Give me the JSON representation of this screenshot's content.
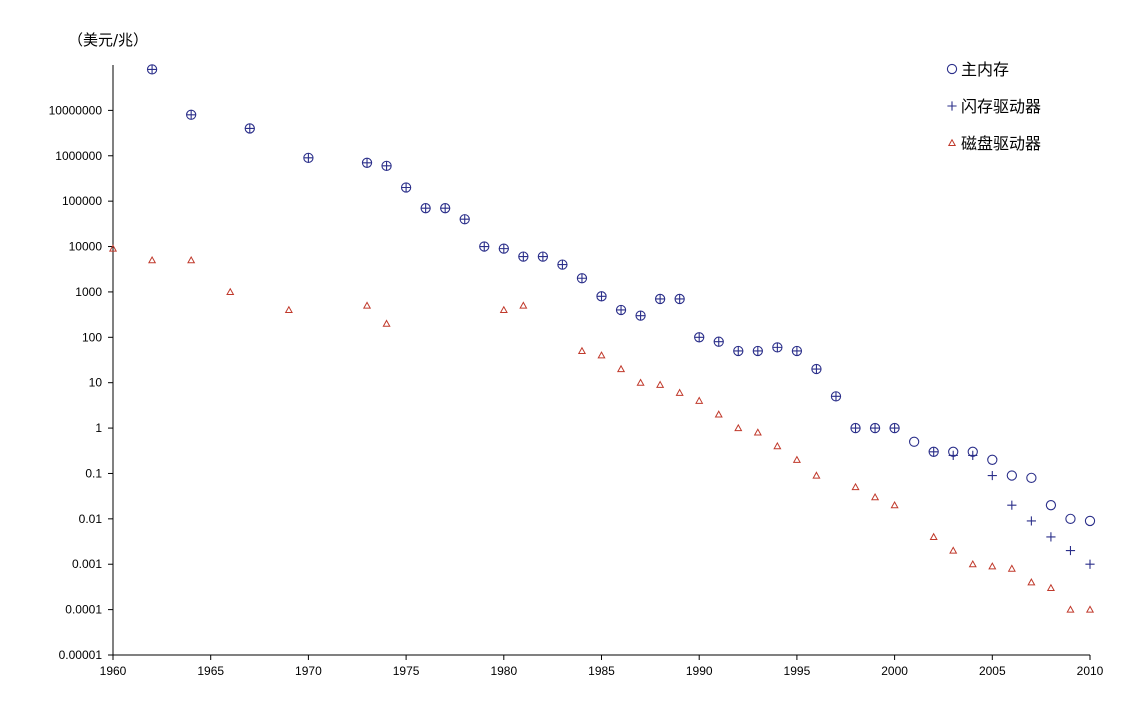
{
  "chart_data": {
    "type": "scatter",
    "y_scale": "log",
    "ylabel": "（美元/兆）",
    "xlabel": "",
    "title": "",
    "xlim": [
      1960,
      2010
    ],
    "ylim": [
      1e-05,
      100000000
    ],
    "x_ticks": [
      "1960",
      "1965",
      "1970",
      "1975",
      "1980",
      "1985",
      "1990",
      "1995",
      "2000",
      "2005",
      "2010"
    ],
    "y_ticks": [
      "0.00001",
      "0.0001",
      "0.001",
      "0.01",
      "0.1",
      "1",
      "10",
      "100",
      "1000",
      "10000",
      "100000",
      "1000000",
      "10000000"
    ],
    "grid": false,
    "legend_position": "top-right",
    "series": [
      {
        "name": "主内存",
        "marker": "circle",
        "color": "#2b2f8a",
        "points": [
          [
            1962,
            80000000
          ],
          [
            1964,
            8000000
          ],
          [
            1967,
            4000000
          ],
          [
            1970,
            900000
          ],
          [
            1973,
            700000
          ],
          [
            1974,
            600000
          ],
          [
            1975,
            200000
          ],
          [
            1976,
            70000
          ],
          [
            1977,
            70000
          ],
          [
            1978,
            40000
          ],
          [
            1979,
            10000
          ],
          [
            1980,
            9000
          ],
          [
            1981,
            6000
          ],
          [
            1982,
            6000
          ],
          [
            1983,
            4000
          ],
          [
            1984,
            2000
          ],
          [
            1985,
            800
          ],
          [
            1986,
            400
          ],
          [
            1987,
            300
          ],
          [
            1988,
            700
          ],
          [
            1989,
            700
          ],
          [
            1990,
            100
          ],
          [
            1991,
            80
          ],
          [
            1992,
            50
          ],
          [
            1993,
            50
          ],
          [
            1994,
            60
          ],
          [
            1995,
            50
          ],
          [
            1996,
            20
          ],
          [
            1997,
            5
          ],
          [
            1998,
            1
          ],
          [
            1999,
            1
          ],
          [
            2000,
            1
          ],
          [
            2001,
            0.5
          ],
          [
            2002,
            0.3
          ],
          [
            2003,
            0.3
          ],
          [
            2004,
            0.3
          ],
          [
            2005,
            0.2
          ],
          [
            2006,
            0.09
          ],
          [
            2007,
            0.08
          ],
          [
            2008,
            0.02
          ],
          [
            2009,
            0.01
          ],
          [
            2010,
            0.009
          ]
        ]
      },
      {
        "name": "闪存驱动器",
        "marker": "plus",
        "color": "#2b2f8a",
        "points": [
          [
            1962,
            80000000
          ],
          [
            1964,
            8000000
          ],
          [
            1967,
            4000000
          ],
          [
            1970,
            900000
          ],
          [
            1973,
            700000
          ],
          [
            1974,
            600000
          ],
          [
            1975,
            200000
          ],
          [
            1976,
            70000
          ],
          [
            1977,
            70000
          ],
          [
            1978,
            40000
          ],
          [
            1979,
            10000
          ],
          [
            1980,
            9000
          ],
          [
            1981,
            6000
          ],
          [
            1982,
            6000
          ],
          [
            1983,
            4000
          ],
          [
            1984,
            2000
          ],
          [
            1985,
            800
          ],
          [
            1986,
            400
          ],
          [
            1987,
            300
          ],
          [
            1988,
            700
          ],
          [
            1989,
            700
          ],
          [
            1990,
            100
          ],
          [
            1991,
            80
          ],
          [
            1992,
            50
          ],
          [
            1993,
            50
          ],
          [
            1994,
            60
          ],
          [
            1995,
            50
          ],
          [
            1996,
            20
          ],
          [
            1997,
            5
          ],
          [
            1998,
            1
          ],
          [
            1999,
            1
          ],
          [
            2000,
            1
          ],
          [
            2002,
            0.3
          ],
          [
            2003,
            0.25
          ],
          [
            2004,
            0.25
          ],
          [
            2005,
            0.09
          ],
          [
            2006,
            0.02
          ],
          [
            2007,
            0.009
          ],
          [
            2008,
            0.004
          ],
          [
            2009,
            0.002
          ],
          [
            2010,
            0.001
          ]
        ]
      },
      {
        "name": "磁盘驱动器",
        "marker": "triangle",
        "color": "#c0392b",
        "points": [
          [
            1960,
            9000
          ],
          [
            1962,
            5000
          ],
          [
            1964,
            5000
          ],
          [
            1966,
            1000
          ],
          [
            1969,
            400
          ],
          [
            1973,
            500
          ],
          [
            1974,
            200
          ],
          [
            1980,
            400
          ],
          [
            1981,
            500
          ],
          [
            1984,
            50
          ],
          [
            1985,
            40
          ],
          [
            1986,
            20
          ],
          [
            1987,
            10
          ],
          [
            1988,
            9
          ],
          [
            1989,
            6
          ],
          [
            1990,
            4
          ],
          [
            1991,
            2
          ],
          [
            1992,
            1
          ],
          [
            1993,
            0.8
          ],
          [
            1994,
            0.4
          ],
          [
            1995,
            0.2
          ],
          [
            1996,
            0.09
          ],
          [
            1998,
            0.05
          ],
          [
            1999,
            0.03
          ],
          [
            2000,
            0.02
          ],
          [
            2002,
            0.004
          ],
          [
            2003,
            0.002
          ],
          [
            2004,
            0.001
          ],
          [
            2005,
            0.0009
          ],
          [
            2006,
            0.0008
          ],
          [
            2007,
            0.0004
          ],
          [
            2008,
            0.0003
          ],
          [
            2009,
            0.0001
          ],
          [
            2010,
            0.0001
          ]
        ]
      }
    ]
  }
}
